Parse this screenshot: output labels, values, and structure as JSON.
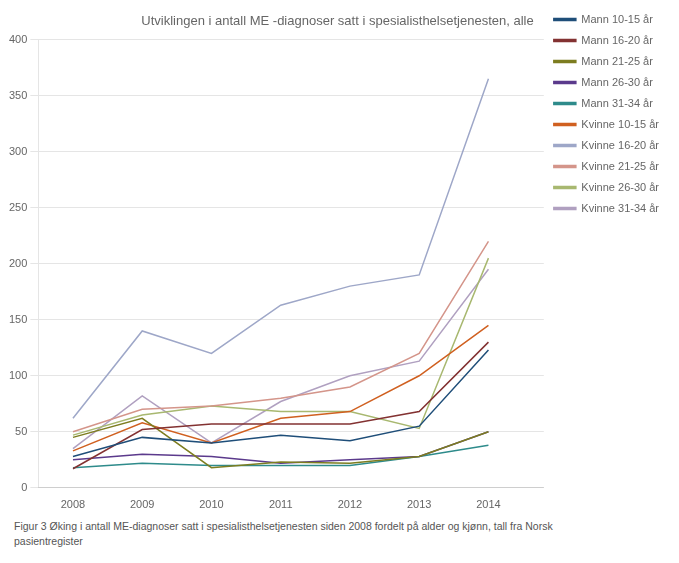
{
  "chart_data": {
    "type": "line",
    "title": "Utviklingen i antall ME -diagnoser satt i spesialisthelsetjenesten, alle",
    "caption": [
      "Figur 3 Øking i antall ME-diagnoser satt i spesialisthelsetjenesten siden 2008 fordelt på alder og kjønn, tall fra Norsk",
      "pasientregister"
    ],
    "x": [
      2008,
      2009,
      2010,
      2011,
      2012,
      2013,
      2014
    ],
    "series": [
      {
        "name": "Mann 10-15 år",
        "color": "#1F4E79",
        "values": [
          28,
          45,
          40,
          47,
          42,
          55,
          123
        ]
      },
      {
        "name": "Mann 16-20 år",
        "color": "#833232",
        "values": [
          17,
          52,
          57,
          57,
          57,
          68,
          130
        ]
      },
      {
        "name": "Mann 21-25 år",
        "color": "#7D7D20",
        "values": [
          45,
          62,
          18,
          23,
          22,
          28,
          50
        ]
      },
      {
        "name": "Mann 26-30 år",
        "color": "#5B3A8C",
        "values": [
          25,
          30,
          28,
          22,
          25,
          28,
          50
        ]
      },
      {
        "name": "Mann 31-34 år",
        "color": "#2E8B8B",
        "values": [
          18,
          22,
          20,
          20,
          20,
          28,
          38
        ]
      },
      {
        "name": "Kvinne 10-15 år",
        "color": "#D06020",
        "values": [
          33,
          58,
          40,
          62,
          68,
          100,
          145
        ]
      },
      {
        "name": "Kvinne 16-20 år",
        "color": "#9EA7C8",
        "values": [
          62,
          140,
          120,
          163,
          180,
          190,
          365
        ]
      },
      {
        "name": "Kvinne 21-25 år",
        "color": "#D4958A",
        "values": [
          50,
          70,
          73,
          80,
          90,
          120,
          220
        ]
      },
      {
        "name": "Kvinne 26-30 år",
        "color": "#A8B870",
        "values": [
          47,
          65,
          73,
          68,
          68,
          53,
          205
        ]
      },
      {
        "name": "Kvinne 31-34 år",
        "color": "#B0A0C0",
        "values": [
          35,
          82,
          40,
          77,
          100,
          113,
          195
        ]
      }
    ],
    "xlim": [
      2007.5,
      2014.8
    ],
    "xticks": [
      2008,
      2009,
      2010,
      2011,
      2012,
      2013,
      2014
    ],
    "ylim": [
      0,
      400
    ],
    "yticks": [
      0,
      50,
      100,
      150,
      200,
      250,
      300,
      350,
      400
    ],
    "grid": true,
    "legend": "right"
  }
}
